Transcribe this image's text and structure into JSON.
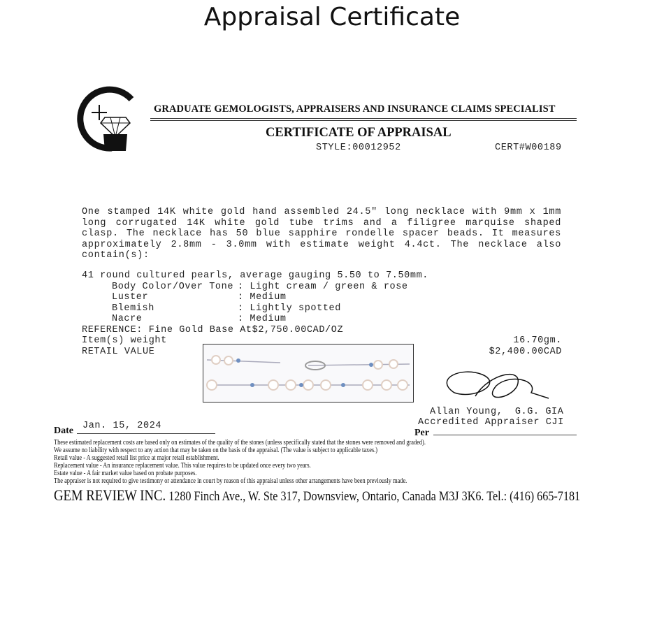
{
  "page_title": "Appraisal Certificate",
  "certificate": {
    "organization": "GRADUATE GEMOLOGISTS, APPRAISERS AND INSURANCE CLAIMS SPECIALIST",
    "heading": "CERTIFICATE OF APPRAISAL",
    "style": "STYLE:00012952",
    "cert_no": "CERT#W00189",
    "description": "One stamped 14K white gold hand assembled 24.5\" long necklace with 9mm x 1mm long corrugated 14K white gold tube trims and a filigree marquise shaped clasp. The necklace has 50 blue sapphire rondelle spacer beads. It measures approximately 2.8mm - 3.0mm with estimate weight 4.4ct. The necklace also contain(s):",
    "pearls": "41 round cultured pearls, average gauging 5.50 to 7.50mm.",
    "attributes": [
      {
        "label": "Body Color/Over Tone",
        "value": ": Light cream / green & rose"
      },
      {
        "label": "Luster",
        "value": ": Medium"
      },
      {
        "label": "Blemish",
        "value": ": Lightly spotted"
      },
      {
        "label": "Nacre",
        "value": ": Medium"
      }
    ],
    "reference": "REFERENCE: Fine Gold Base At$2,750.00CAD/OZ",
    "weight_label": "Item(s) weight",
    "weight_value": "16.70gm.",
    "retail_label": "RETAIL VALUE",
    "retail_value": "$2,400.00CAD",
    "date_label": "Date",
    "date_value": "Jan. 15, 2024",
    "per_label": "Per",
    "appraiser_name": "Allan Young,  G.G. GIA",
    "appraiser_title": "Accredited Appraiser CJI",
    "notes": [
      "These estimated replacement costs are based only on estimates of the  quality of the stones (unless specifically stated that the stones were removed and graded).",
      "We assume no liability with respect to any action that may be taken on the basis of the appraisal. (The value is subject to applicable taxes.)",
      "Retail value - A suggested retail list price at major retail establishment.",
      "Replacement value - An insurance replacement value. This value requires to be updated once every two years.",
      "Estate value - A fair market value based on probate purposes.",
      "The appraiser is not required to give testimony or attendance in court by reason of this appraisal unless other arrangements have been previously made."
    ],
    "company": "GEM REVIEW INC.",
    "address": "1280 Finch Ave., W. Ste 317, Downsview, Ontario, Canada M3J 3K6.  Tel.: (416) 665-7181"
  }
}
